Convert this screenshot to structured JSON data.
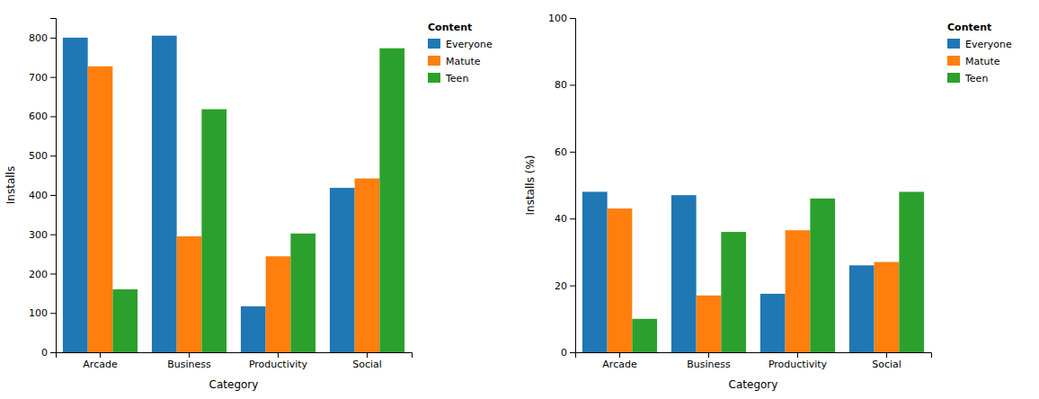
{
  "chart_data": [
    {
      "type": "bar",
      "categories": [
        "Arcade",
        "Business",
        "Productivity",
        "Social"
      ],
      "series": [
        {
          "name": "Everyone",
          "color": "#1f77b4",
          "values": [
            800,
            805,
            117,
            418
          ]
        },
        {
          "name": "Matute",
          "color": "#ff7f0e",
          "values": [
            727,
            295,
            244,
            442
          ]
        },
        {
          "name": "Teen",
          "color": "#2ca02c",
          "values": [
            160,
            618,
            302,
            773
          ]
        }
      ],
      "xlabel": "Category",
      "ylabel": "Installs",
      "ylim": [
        0,
        850
      ],
      "yticks": [
        0,
        100,
        200,
        300,
        400,
        500,
        600,
        700,
        800
      ],
      "grid": false,
      "legend": "upper right",
      "legend_title": "Content"
    },
    {
      "type": "bar",
      "categories": [
        "Arcade",
        "Business",
        "Productivity",
        "Social"
      ],
      "series": [
        {
          "name": "Everyone",
          "color": "#1f77b4",
          "values": [
            48,
            47,
            17.5,
            26
          ]
        },
        {
          "name": "Matute",
          "color": "#ff7f0e",
          "values": [
            43,
            17,
            36.5,
            27
          ]
        },
        {
          "name": "Teen",
          "color": "#2ca02c",
          "values": [
            10,
            36,
            46,
            48
          ]
        }
      ],
      "xlabel": "Category",
      "ylabel": "Installs (%)",
      "ylim": [
        0,
        100
      ],
      "yticks": [
        0,
        20,
        40,
        60,
        80,
        100
      ],
      "grid": false,
      "legend": "upper right",
      "legend_title": "Content"
    }
  ]
}
